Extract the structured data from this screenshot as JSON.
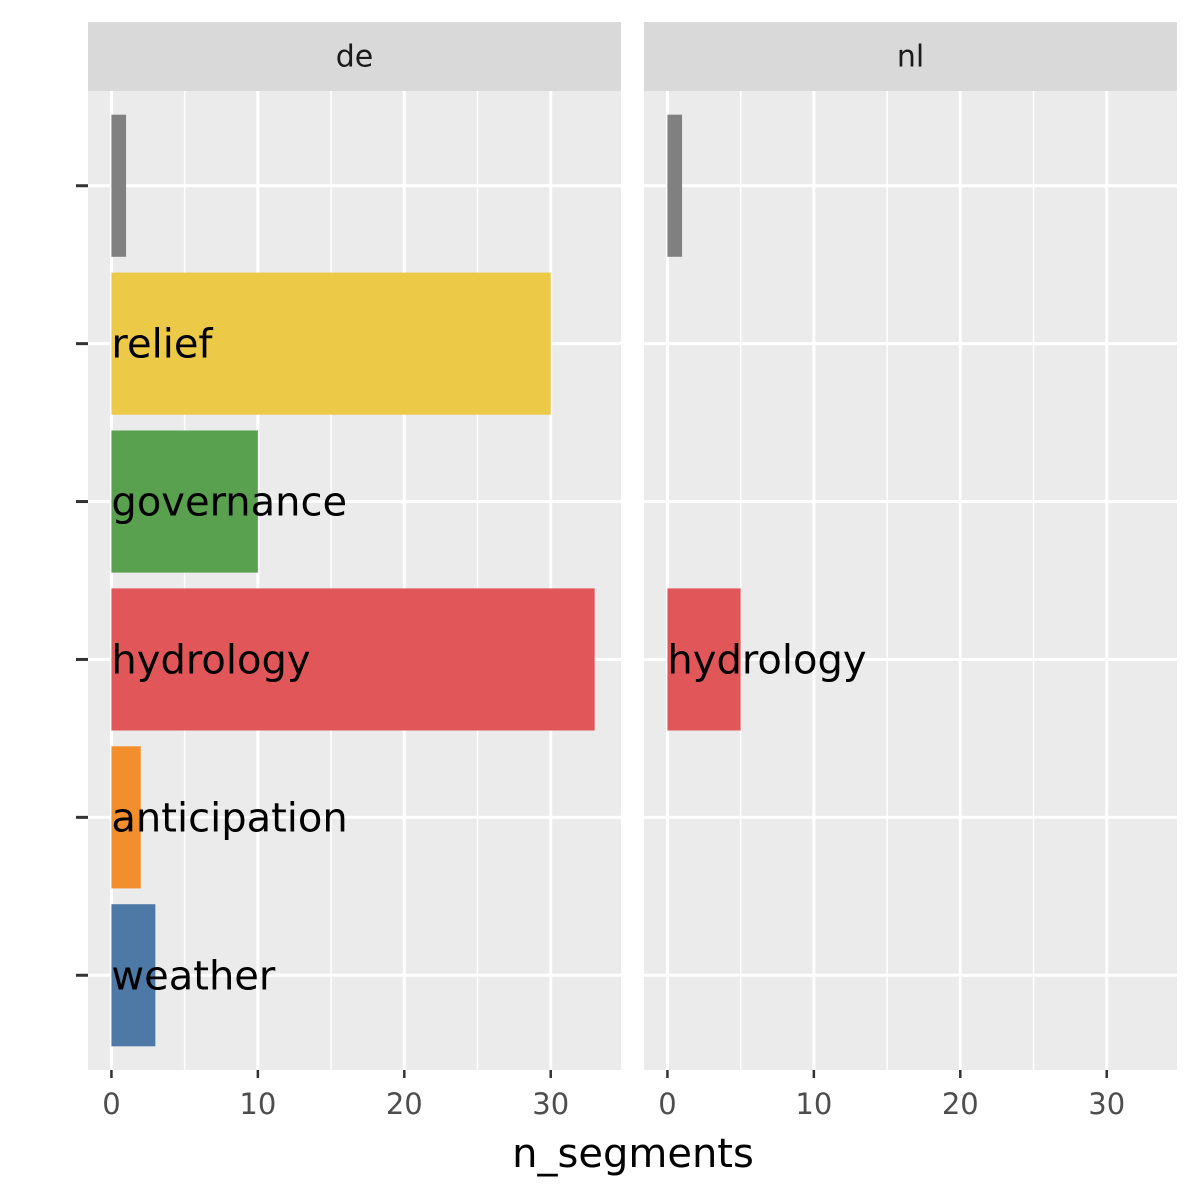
{
  "chart_data": {
    "type": "bar",
    "orientation": "horizontal",
    "xlabel": "n_segments",
    "ylabel": "",
    "xlim": [
      -1.6,
      34.8
    ],
    "xticks": [
      0,
      10,
      20,
      30
    ],
    "categories": [
      "weather",
      "anticipation",
      "hydrology",
      "governance",
      "relief",
      ""
    ],
    "colors": {
      "weather": "#4e79a7",
      "anticipation": "#f28e2b",
      "hydrology": "#e15759",
      "governance": "#59a14f",
      "relief": "#edc948",
      "": "#808080"
    },
    "panels": [
      {
        "name": "de",
        "bars": [
          {
            "category": "weather",
            "value": 3,
            "label": "weather"
          },
          {
            "category": "anticipation",
            "value": 2,
            "label": "anticipation"
          },
          {
            "category": "hydrology",
            "value": 33,
            "label": "hydrology"
          },
          {
            "category": "governance",
            "value": 10,
            "label": "governance"
          },
          {
            "category": "relief",
            "value": 30,
            "label": "relief"
          },
          {
            "category": "",
            "value": 1,
            "label": ""
          }
        ]
      },
      {
        "name": "nl",
        "bars": [
          {
            "category": "hydrology",
            "value": 5,
            "label": "hydrology"
          },
          {
            "category": "",
            "value": 1,
            "label": ""
          }
        ]
      }
    ],
    "grid": true,
    "legend": "none"
  }
}
